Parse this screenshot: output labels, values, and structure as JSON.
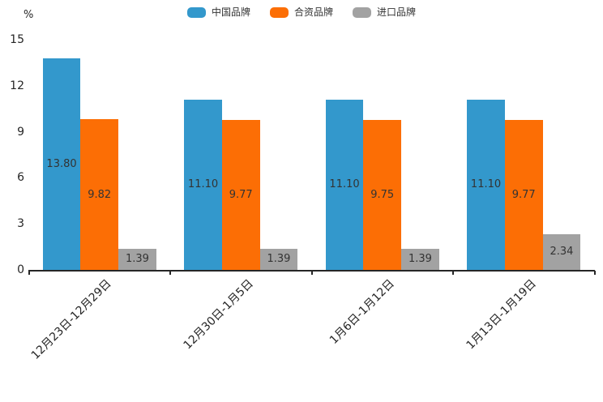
{
  "chart_data": {
    "type": "bar",
    "title": "",
    "unit": "%",
    "categories": [
      "12月23日-12月29日",
      "12月30日-1月5日",
      "1月6日-1月12日",
      "1月13日-1月19日"
    ],
    "series": [
      {
        "name": "中国品牌",
        "color": "#3398CC",
        "values": [
          13.8,
          11.1,
          11.1,
          11.1
        ]
      },
      {
        "name": "合资品牌",
        "color": "#FC6E05",
        "values": [
          9.82,
          9.77,
          9.75,
          9.77
        ]
      },
      {
        "name": "进口品牌",
        "color": "#A2A2A2",
        "values": [
          1.39,
          1.39,
          1.39,
          2.34
        ]
      }
    ],
    "xlabel": "",
    "ylabel": "%",
    "ylim": [
      0,
      15
    ],
    "yticks": [
      0,
      3,
      6,
      9,
      12,
      15
    ],
    "grid": false,
    "legend_position": "top",
    "value_label_style": "inside-center, two decimals",
    "value_label_color": "#333333",
    "axis_color": "#262626"
  }
}
